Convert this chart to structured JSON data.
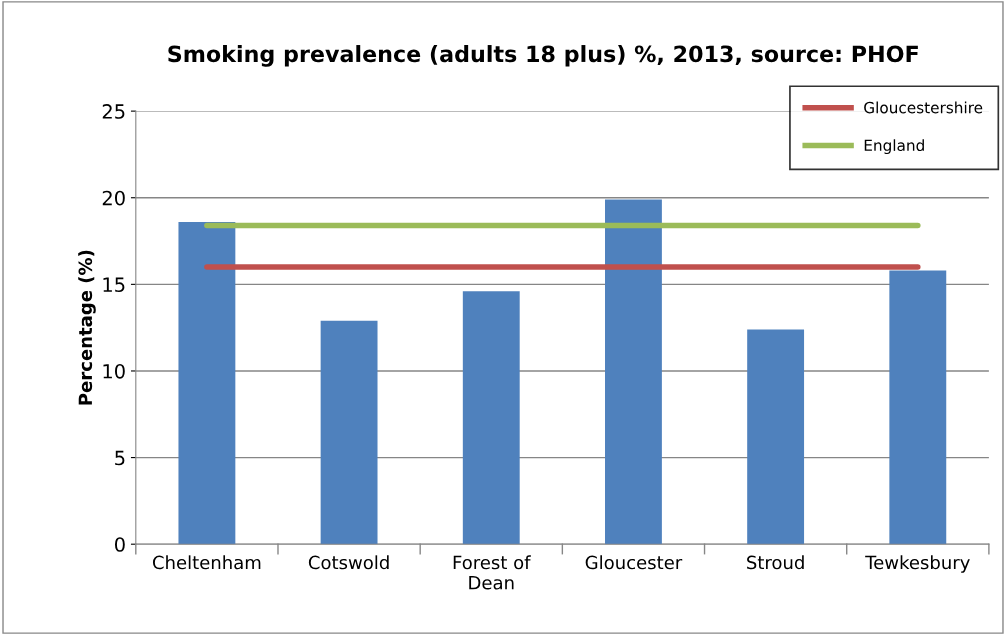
{
  "chart_data": {
    "type": "bar",
    "title": "Smoking prevalence (adults 18 plus) %, 2013, source: PHOF",
    "ylabel": "Percentage (%)",
    "categories": [
      "Cheltenham",
      "Cotswold",
      "Forest of\nDean",
      "Gloucester",
      "Stroud",
      "Tewkesbury"
    ],
    "series": [
      {
        "color": "#4f81bd",
        "values": [
          18.6,
          12.9,
          14.6,
          19.9,
          12.4,
          15.8
        ]
      },
      {
        "type": "line",
        "name": "Gloucestershire",
        "color": "#c0504d",
        "values": [
          16.0,
          16.0,
          16.0,
          16.0,
          16.0,
          16.0
        ]
      },
      {
        "type": "line",
        "name": "England",
        "color": "#9bbb59",
        "values": [
          18.4,
          18.4,
          18.4,
          18.4,
          18.4,
          18.4
        ]
      }
    ],
    "ylim": [
      0,
      25
    ],
    "yticks": [
      0,
      5,
      10,
      15,
      20,
      25
    ],
    "grid": "y",
    "legend": "top right",
    "marker": "none",
    "line_style": "solid"
  }
}
